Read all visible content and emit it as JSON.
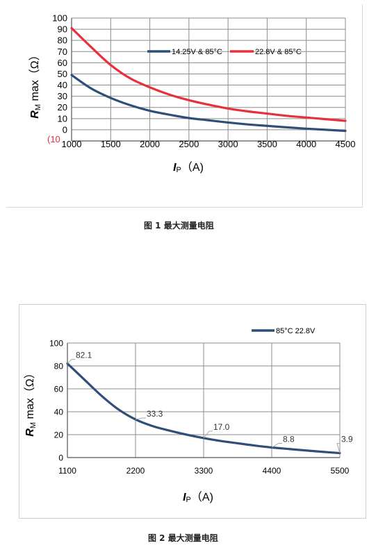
{
  "captions": {
    "fig1": "图 1 最大测量电阻",
    "fig2": "图 2 最大测量电阻"
  },
  "colors": {
    "blue": "#2e4f78",
    "red": "#e8303c",
    "grid": "#8c8c8c",
    "leader": "#a9a9a9"
  },
  "chart_data": [
    {
      "type": "line",
      "ylabel_main": "R",
      "ylabel_sub": "M",
      "ylabel_rest": " max（Ω）",
      "xlabel_main": "I",
      "xlabel_sub": "P",
      "xlabel_rest": "（A)",
      "xlim": [
        1000,
        4500
      ],
      "ylim": [
        -10,
        100
      ],
      "xticks": [
        "1000",
        "1500",
        "2000",
        "2500",
        "3000",
        "3500",
        "4000",
        "4500"
      ],
      "yticks": [
        "100",
        "90",
        "80",
        "70",
        "60",
        "50",
        "40",
        "30",
        "20",
        "10",
        "0"
      ],
      "ymin_label": "(10",
      "grid": true,
      "legend_position": "top-right",
      "series": [
        {
          "name": "14.25V & 85°C",
          "color": "#2e4f78",
          "x": [
            1000,
            1250,
            1500,
            1750,
            2000,
            2250,
            2500,
            2750,
            3000,
            3250,
            3500,
            3750,
            4000,
            4250,
            4500
          ],
          "y": [
            49,
            37,
            28.5,
            22,
            17,
            13.5,
            10.5,
            8.5,
            6.5,
            4.8,
            3.5,
            2.2,
            1,
            0,
            -1
          ]
        },
        {
          "name": "22.8V & 85°C",
          "color": "#e8303c",
          "x": [
            1000,
            1250,
            1500,
            1750,
            2000,
            2250,
            2500,
            2750,
            3000,
            3250,
            3500,
            3750,
            4000,
            4250,
            4500
          ],
          "y": [
            91,
            74,
            58,
            46,
            38,
            31.5,
            26.5,
            22.5,
            19,
            16.5,
            14.5,
            12.5,
            11,
            9.5,
            8
          ]
        }
      ]
    },
    {
      "type": "line",
      "ylabel_main": "R",
      "ylabel_sub": "M",
      "ylabel_rest": " max（Ω）",
      "xlabel_main": "I",
      "xlabel_sub": "P",
      "xlabel_rest": "（A)",
      "xlim": [
        1100,
        5500
      ],
      "ylim": [
        0,
        100
      ],
      "xticks": [
        "1100",
        "2200",
        "3300",
        "4400",
        "5500"
      ],
      "yticks": [
        "100",
        "80",
        "60",
        "40",
        "20",
        "0"
      ],
      "grid": true,
      "legend_position": "top-right",
      "series": [
        {
          "name": "85°C 22.8V",
          "color": "#2e4f78",
          "x": [
            1100,
            1375,
            1650,
            1925,
            2200,
            2475,
            2750,
            3025,
            3300,
            3575,
            3850,
            4125,
            4400,
            4675,
            4950,
            5225,
            5500
          ],
          "y": [
            82.1,
            68,
            54,
            42,
            33.3,
            27.5,
            23.5,
            20,
            17,
            14.5,
            12.5,
            10.5,
            8.8,
            7.5,
            6.2,
            5,
            3.9
          ]
        }
      ],
      "data_labels": [
        {
          "x": 1100,
          "y": 82.1,
          "text": "82.1"
        },
        {
          "x": 2200,
          "y": 33.3,
          "text": "33.3"
        },
        {
          "x": 3300,
          "y": 17.0,
          "text": "17.0"
        },
        {
          "x": 4400,
          "y": 8.8,
          "text": "8.8"
        },
        {
          "x": 5500,
          "y": 3.9,
          "text": "3.9"
        }
      ]
    }
  ]
}
